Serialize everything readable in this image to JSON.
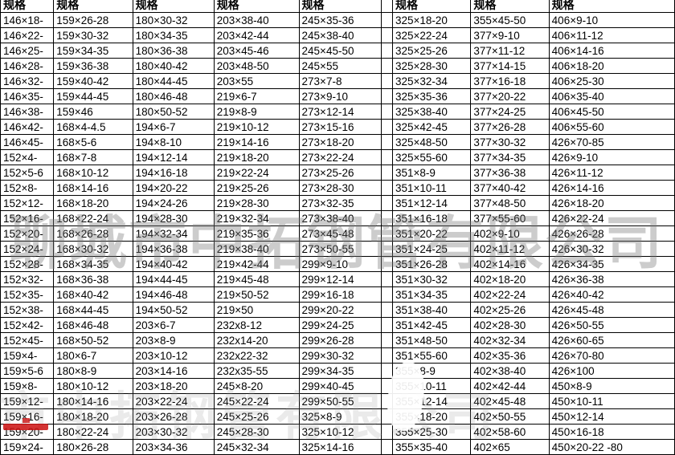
{
  "table": {
    "header_label": "规格",
    "spacer_after": 5,
    "columns": [
      [
        "146×18-",
        "146×22-",
        "146×25-",
        "146×28-",
        "146×32-",
        "146×35-",
        "146×38-",
        "146×42-",
        "146×45-",
        "152×4-",
        "152×5-6",
        "152×8-",
        "152×12-",
        "152×16-",
        "152×20-",
        "152×24-",
        "152×28-",
        "152×32-",
        "152×35-",
        "152×38-",
        "152×42-",
        "152×45-",
        "159×4-",
        "159×5-6",
        "159×8-",
        "159×12-",
        "159×16-",
        "159×20-",
        "159×24-"
      ],
      [
        "159×26-28",
        "159×30-32",
        "159×34-35",
        "159×36-38",
        "159×40-42",
        "159×44-45",
        "159×46",
        "168×4-4.5",
        "168×5-6",
        "168×7-8",
        "168×10-12",
        "168×14-16",
        "168×18-20",
        "168×22-24",
        "168×26-28",
        "168×30-32",
        "168×34-35",
        "168×36-38",
        "168×40-42",
        "168×44-45",
        "168×46-48",
        "168×50-52",
        "180×6-7",
        "180×8-9",
        "180×10-12",
        "180×14-16",
        "180×18-20",
        "180×22-24",
        "180×26-28"
      ],
      [
        "180×30-32",
        "180×34-35",
        "180×36-38",
        "180×40-42",
        "180×44-45",
        "180×46-48",
        "180×50-52",
        "194×6-7",
        "194×8-10",
        "194×12-14",
        "194×16-18",
        "194×20-22",
        "194×24-26",
        "194×28-30",
        "194×32-34",
        "194×36-38",
        "194×40-42",
        "194×44-45",
        "194×46-48",
        "194×50-52",
        "203×6-7",
        "203×8-9",
        "203×10-12",
        "203×14-16",
        "203×18-20",
        "203×22-24",
        "203×26-28",
        "203×30-32",
        "203×34-36"
      ],
      [
        "203×38-40",
        "203×42-44",
        "203×45-46",
        "203×48-50",
        "203×55",
        "219×6-7",
        "219×8-9",
        "219×10-12",
        "219×14-16",
        "219×18-20",
        "219×22-24",
        "219×25-26",
        "219×28-30",
        "219×32-34",
        "219×35-36",
        "219×38-40",
        "219×42-44",
        "219×45-48",
        "219×50-52",
        "219×50",
        "232x8-12",
        "232x14-20",
        "232x22-32",
        "232x35-55",
        "245×8-20",
        "245×22-24",
        "245×25-26",
        "245×28-30",
        "245×32-34"
      ],
      [
        "245×35-36",
        "245×38-40",
        "245×45-50",
        "245×55",
        "273×7-8",
        "273×9-10",
        "273×12-14",
        "273×15-16",
        "273×18-20",
        "273×22-24",
        "273×25-26",
        "273×28-30",
        "273×32-35",
        "273×38-40",
        "273×45-48",
        "273×50-55",
        "299×9-10",
        "299×12-14",
        "299×16-18",
        "299×20-22",
        "299×24-25",
        "299×26-28",
        "299×30-32",
        "299×34-35",
        "299×40-45",
        "299×50-55",
        "325×8-9",
        "325×10-12",
        "325×14-16"
      ],
      [
        "325×18-20",
        "325×22-24",
        "325×25-26",
        "325×28-30",
        "325×32-34",
        "325×35-36",
        "325×38-40",
        "325×42-45",
        "325×48-50",
        "325×55-60",
        "351×8-9",
        "351×10-11",
        "351×12-14",
        "351×16-18",
        "351×20-22",
        "351×24-25",
        "351×26-28",
        "351×30-32",
        "351×34-35",
        "351×38-40",
        "351×42-45",
        "351×48-50",
        "351×55-60",
        "355×8-9",
        "355×10-11",
        "355×12-14",
        "355×18-20",
        "355×25-30",
        "355×35-40"
      ],
      [
        "355×45-50",
        "377×9-10",
        "377×11-12",
        "377×14-15",
        "377×16-18",
        "377×20-22",
        "377×24-25",
        "377×26-28",
        "377×30-32",
        "377×34-35",
        "377×36-38",
        "377×40-42",
        "377×48-50",
        "377×55-60",
        "402×9-10",
        "402×11-12",
        "402×14-16",
        "402×18-20",
        "402×22-24",
        "402×25-26",
        "402×28-30",
        "402×32-34",
        "402×35-36",
        "402×38-40",
        "402×42-44",
        "402×45-48",
        "402×50-55",
        "402×58-60",
        "402×65"
      ],
      [
        "406×9-10",
        "406×11-12",
        "406×14-16",
        "406×18-20",
        "406×25-30",
        "406×35-40",
        "406×45-50",
        "406×55-60",
        "426×70-85",
        "426×9-10",
        "426×11-12",
        "426×14-16",
        "426×18-20",
        "426×22-24",
        "426×26-28",
        "426×30-32",
        "426×34-35",
        "426×36-38",
        "426×40-42",
        "426×45-48",
        "426×50-55",
        "426×60-65",
        "426×70-80",
        "426×100",
        "450×8-9",
        "450×10-11",
        "450×12-14",
        "450×16-18",
        "450×20-22 -80"
      ]
    ]
  },
  "watermarks": {
    "center_text": "聊城市中拓钢管有限公司",
    "bottom_text": "聊城市中拓钢管有限公司",
    "gray_color": "#7a7a7a",
    "red_color": "#cc1111"
  }
}
